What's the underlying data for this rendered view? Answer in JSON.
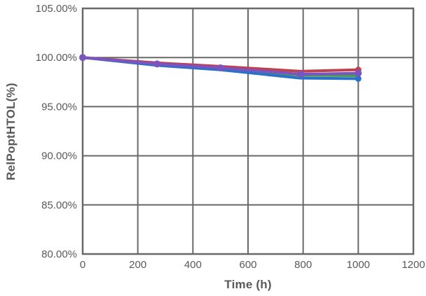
{
  "figure": {
    "background": "#ffffff",
    "text_color": "#595959",
    "grid_color": "#696969",
    "border_color": "#696969"
  },
  "chart_data": {
    "type": "line",
    "title": "",
    "xlabel": "Time (h)",
    "ylabel": "RelPoptHTOL(%)",
    "xlim": [
      0,
      1200
    ],
    "ylim": [
      80,
      105
    ],
    "xticks": [
      0,
      200,
      400,
      600,
      800,
      1000,
      1200
    ],
    "xtick_labels": [
      "0",
      "200",
      "400",
      "600",
      "800",
      "1000",
      "1200"
    ],
    "yticks": [
      80,
      85,
      90,
      95,
      100,
      105
    ],
    "ytick_labels": [
      "80.00%",
      "85.00%",
      "90.00%",
      "95.00%",
      "100.00%",
      "105.00%"
    ],
    "grid": true,
    "legend": "none",
    "x": [
      0,
      270,
      500,
      790,
      1000
    ],
    "series": [
      {
        "name": "series-red",
        "color": "#be4150",
        "values": [
          100.0,
          99.45,
          99.1,
          98.6,
          98.75
        ],
        "marker": "last"
      },
      {
        "name": "series-green",
        "color": "#46a04e",
        "values": [
          100.0,
          99.3,
          98.9,
          98.2,
          98.15
        ],
        "marker": "none"
      },
      {
        "name": "series-blue",
        "color": "#2b71c8",
        "values": [
          100.0,
          99.2,
          98.75,
          97.9,
          97.85
        ],
        "marker": "last"
      },
      {
        "name": "series-purple",
        "color": "#7a55c0",
        "values": [
          100.0,
          99.35,
          98.95,
          98.3,
          98.4
        ],
        "marker": "all"
      }
    ]
  }
}
